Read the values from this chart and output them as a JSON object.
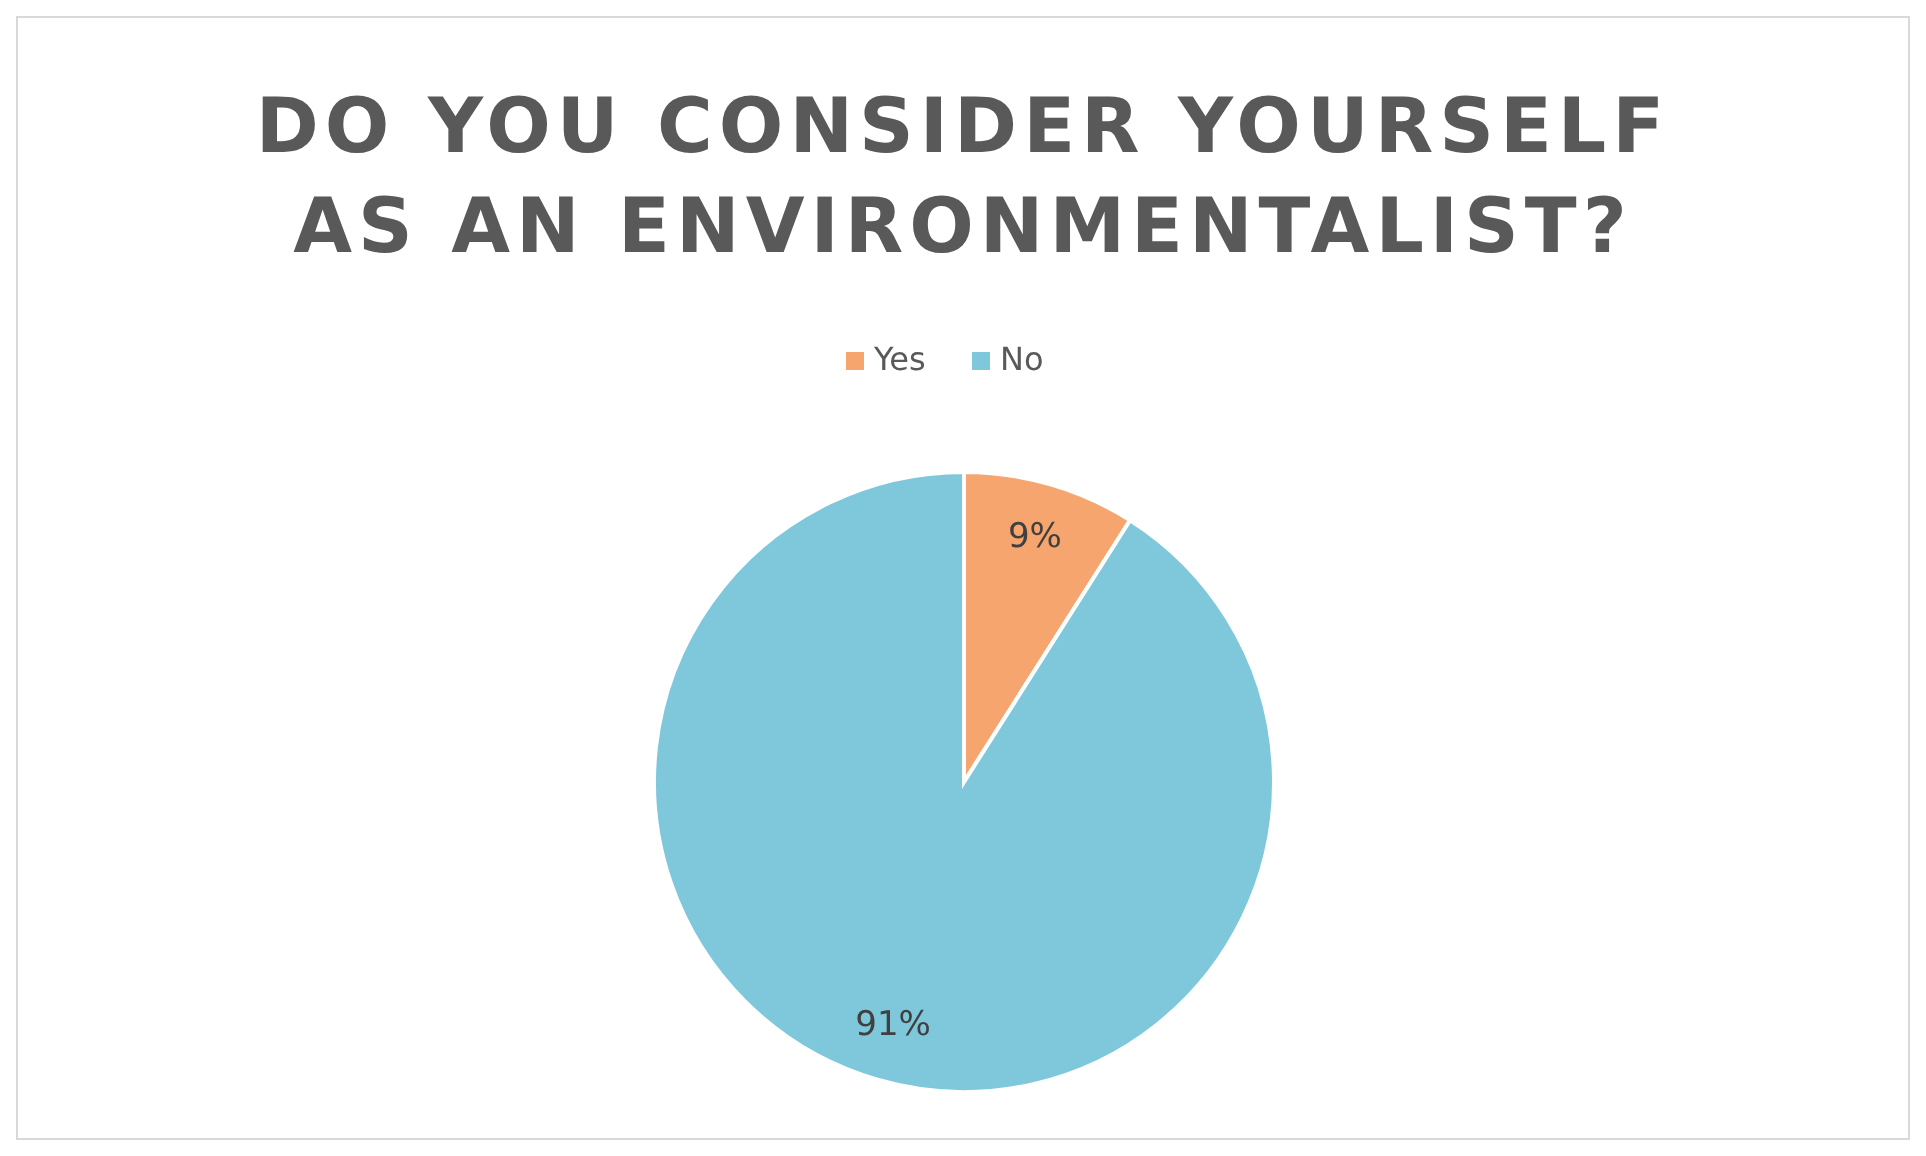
{
  "chart_data": {
    "type": "pie",
    "title": "DO YOU CONSIDER YOURSELF AS AN ENVIRONMENTALIST?",
    "categories": [
      "Yes",
      "No"
    ],
    "values": [
      9,
      91
    ],
    "value_labels": [
      "9%",
      "91%"
    ],
    "colors": [
      "#f7a56f",
      "#7fc8dc"
    ],
    "legend": "top"
  }
}
